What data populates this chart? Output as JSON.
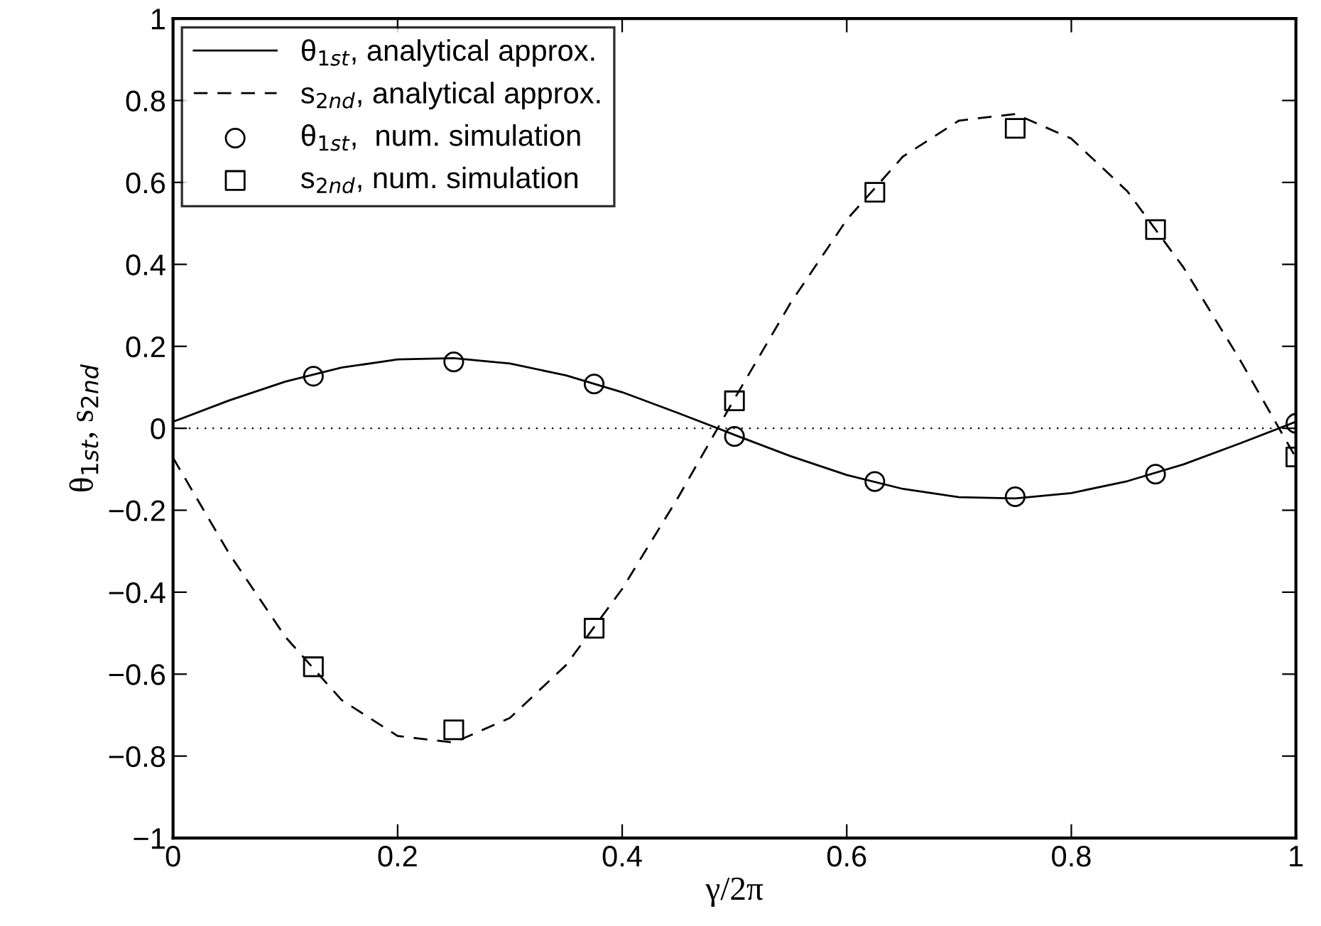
{
  "chart_data": {
    "type": "line",
    "xlabel": "γ/2π",
    "ylabel": "θ$_{1st}$, s$_{2nd}$",
    "xlim": [
      0,
      1
    ],
    "ylim": [
      -1,
      1
    ],
    "xticks": [
      0,
      0.2,
      0.4,
      0.6,
      0.8,
      1
    ],
    "yticks": [
      {
        "value": -1,
        "label": "−1"
      },
      {
        "value": -0.8,
        "label": "−0.8"
      },
      {
        "value": -0.6,
        "label": "−0.6"
      },
      {
        "value": -0.4,
        "label": "−0.4"
      },
      {
        "value": -0.2,
        "label": "−0.2"
      },
      0,
      0.2,
      0.4,
      0.6,
      0.8,
      1
    ],
    "grid": false,
    "legend": "top left",
    "ref_lines": [
      {
        "axis": "y",
        "value": 0,
        "color": "#000000",
        "line_style": "dotted"
      }
    ],
    "series": [
      {
        "name": "θ$_{1st}$, analytical approx.",
        "color": "#000000",
        "line_style": "solid",
        "marker": "none",
        "x": [
          0,
          0.05,
          0.1,
          0.15,
          0.2,
          0.25,
          0.3,
          0.35,
          0.4,
          0.45,
          0.5,
          0.55,
          0.6,
          0.65,
          0.7,
          0.75,
          0.8,
          0.85,
          0.9,
          0.95,
          1
        ],
        "values": [
          0.016,
          0.068,
          0.114,
          0.148,
          0.168,
          0.171,
          0.158,
          0.129,
          0.088,
          0.037,
          -0.016,
          -0.068,
          -0.114,
          -0.148,
          -0.168,
          -0.171,
          -0.158,
          -0.129,
          -0.088,
          -0.037,
          0.016
        ]
      },
      {
        "name": "s$_{2nd}$, analytical approx.",
        "color": "#000000",
        "line_style": "dashed",
        "marker": "none",
        "x": [
          0,
          0.05,
          0.1,
          0.15,
          0.2,
          0.25,
          0.3,
          0.35,
          0.4,
          0.45,
          0.5,
          0.55,
          0.6,
          0.65,
          0.7,
          0.75,
          0.8,
          0.85,
          0.9,
          0.95,
          1
        ],
        "values": [
          -0.072,
          -0.306,
          -0.509,
          -0.663,
          -0.751,
          -0.767,
          -0.707,
          -0.578,
          -0.392,
          -0.168,
          0.072,
          0.306,
          0.509,
          0.663,
          0.751,
          0.767,
          0.707,
          0.578,
          0.392,
          0.168,
          -0.072
        ]
      },
      {
        "name": "θ$_{1st}$,  num. simulation",
        "type": "scatter",
        "color": "#000000",
        "marker": "circle",
        "x": [
          0.125,
          0.25,
          0.375,
          0.5,
          0.625,
          0.75,
          0.875,
          1
        ],
        "values": [
          0.127,
          0.162,
          0.108,
          -0.02,
          -0.13,
          -0.167,
          -0.112,
          0.012
        ]
      },
      {
        "name": "s$_{2nd}$, num. simulation",
        "type": "scatter",
        "color": "#000000",
        "marker": "square",
        "x": [
          0.125,
          0.25,
          0.375,
          0.5,
          0.625,
          0.75,
          0.875,
          1
        ],
        "values": [
          -0.582,
          -0.736,
          -0.488,
          0.067,
          0.576,
          0.732,
          0.485,
          -0.07
        ]
      }
    ]
  }
}
